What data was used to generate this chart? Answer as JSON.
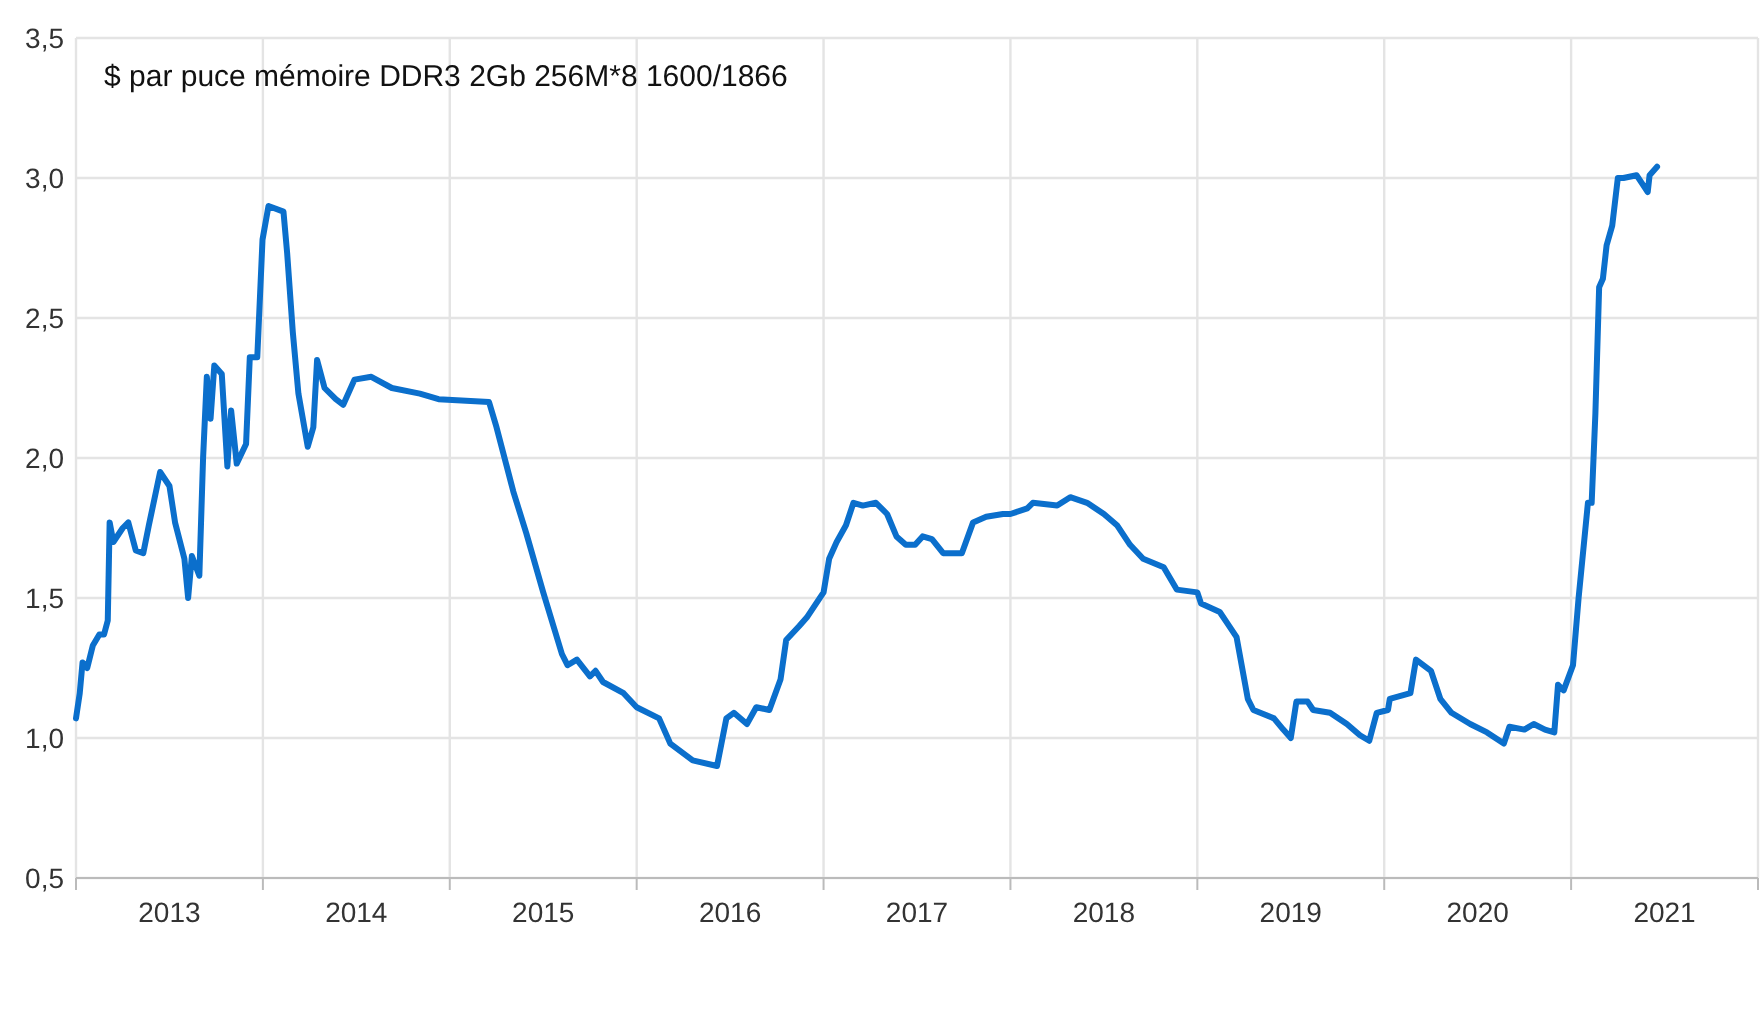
{
  "chart_data": {
    "type": "line",
    "title": "$ par puce mémoire DDR3 2Gb 256M*8 1600/1866",
    "xlim": [
      2013,
      2022
    ],
    "xticks": [
      {
        "value": 2013,
        "label": null
      },
      {
        "value": 2013.5,
        "label": "2013"
      },
      {
        "value": 2014,
        "label": null
      },
      {
        "value": 2014.5,
        "label": "2014"
      },
      {
        "value": 2015,
        "label": null
      },
      {
        "value": 2015.5,
        "label": "2015"
      },
      {
        "value": 2016,
        "label": null
      },
      {
        "value": 2016.5,
        "label": "2016"
      },
      {
        "value": 2017,
        "label": null
      },
      {
        "value": 2017.5,
        "label": "2017"
      },
      {
        "value": 2018,
        "label": null
      },
      {
        "value": 2018.5,
        "label": "2018"
      },
      {
        "value": 2019,
        "label": null
      },
      {
        "value": 2019.5,
        "label": "2019"
      },
      {
        "value": 2020,
        "label": null
      },
      {
        "value": 2020.5,
        "label": "2020"
      },
      {
        "value": 2021,
        "label": null
      },
      {
        "value": 2021.5,
        "label": "2021"
      },
      {
        "value": 2022,
        "label": null
      }
    ],
    "ylim": [
      0.5,
      3.5
    ],
    "yticks": [
      {
        "value": 0.5,
        "label": "0,5"
      },
      {
        "value": 1,
        "label": "1,0"
      },
      {
        "value": 1.5,
        "label": "1,5"
      },
      {
        "value": 2,
        "label": "2,0"
      },
      {
        "value": 2.5,
        "label": "2,5"
      },
      {
        "value": 3,
        "label": "3,0"
      },
      {
        "value": 3.5,
        "label": "3,5"
      }
    ],
    "grid": true,
    "line_style": "solid",
    "marker": "none",
    "series": [
      {
        "color": "#0b6fcc",
        "x": [
          2013.0,
          2013.02,
          2013.035,
          2013.06,
          2013.09,
          2013.125,
          2013.15,
          2013.17,
          2013.18,
          2013.2,
          2013.25,
          2013.28,
          2013.32,
          2013.36,
          2013.39,
          2013.45,
          2013.5,
          2013.53,
          2013.58,
          2013.6,
          2013.62,
          2013.66,
          2013.68,
          2013.7,
          2013.72,
          2013.74,
          2013.78,
          2013.81,
          2013.83,
          2013.86,
          2013.91,
          2013.93,
          2013.97,
          2013.998,
          2014.03,
          2014.11,
          2014.13,
          2014.16,
          2014.19,
          2014.24,
          2014.27,
          2014.29,
          2014.33,
          2014.39,
          2014.43,
          2014.49,
          2014.58,
          2014.69,
          2014.84,
          2014.94,
          2015.21,
          2015.25,
          2015.34,
          2015.41,
          2015.5,
          2015.6,
          2015.63,
          2015.68,
          2015.75,
          2015.78,
          2015.82,
          2015.93,
          2016.0,
          2016.12,
          2016.18,
          2016.3,
          2016.43,
          2016.48,
          2016.52,
          2016.59,
          2016.64,
          2016.71,
          2016.77,
          2016.8,
          2016.87,
          2016.91,
          2017.0,
          2017.03,
          2017.07,
          2017.12,
          2017.16,
          2017.21,
          2017.28,
          2017.34,
          2017.39,
          2017.44,
          2017.49,
          2017.53,
          2017.58,
          2017.64,
          2017.74,
          2017.8,
          2017.87,
          2017.96,
          2018.0,
          2018.09,
          2018.12,
          2018.25,
          2018.32,
          2018.41,
          2018.5,
          2018.57,
          2018.64,
          2018.71,
          2018.82,
          2018.89,
          2019.0,
          2019.02,
          2019.12,
          2019.16,
          2019.21,
          2019.27,
          2019.3,
          2019.41,
          2019.46,
          2019.5,
          2019.53,
          2019.59,
          2019.62,
          2019.71,
          2019.8,
          2019.87,
          2019.92,
          2019.96,
          2020.02,
          2020.03,
          2020.14,
          2020.17,
          2020.25,
          2020.3,
          2020.36,
          2020.46,
          2020.55,
          2020.64,
          2020.67,
          2020.75,
          2020.8,
          2020.86,
          2020.91,
          2020.93,
          2020.96,
          2021.01,
          2021.04,
          2021.09,
          2021.11,
          2021.13,
          2021.15,
          2021.17,
          2021.19,
          2021.22,
          2021.25,
          2021.28,
          2021.35,
          2021.39,
          2021.41,
          2021.42,
          2021.46
        ],
        "values": [
          1.07,
          1.16,
          1.27,
          1.25,
          1.33,
          1.37,
          1.37,
          1.42,
          1.77,
          1.7,
          1.75,
          1.77,
          1.67,
          1.66,
          1.76,
          1.95,
          1.9,
          1.77,
          1.64,
          1.5,
          1.65,
          1.58,
          2.0,
          2.29,
          2.14,
          2.33,
          2.3,
          1.97,
          2.17,
          1.98,
          2.05,
          2.36,
          2.36,
          2.78,
          2.9,
          2.88,
          2.73,
          2.45,
          2.23,
          2.04,
          2.11,
          2.35,
          2.25,
          2.21,
          2.19,
          2.28,
          2.29,
          2.25,
          2.23,
          2.21,
          2.2,
          2.11,
          1.88,
          1.73,
          1.52,
          1.3,
          1.26,
          1.28,
          1.22,
          1.24,
          1.2,
          1.16,
          1.11,
          1.07,
          0.98,
          0.92,
          0.9,
          1.07,
          1.09,
          1.05,
          1.11,
          1.1,
          1.21,
          1.35,
          1.4,
          1.43,
          1.52,
          1.64,
          1.7,
          1.76,
          1.84,
          1.83,
          1.84,
          1.8,
          1.72,
          1.69,
          1.69,
          1.72,
          1.71,
          1.66,
          1.66,
          1.77,
          1.79,
          1.8,
          1.8,
          1.82,
          1.84,
          1.83,
          1.86,
          1.84,
          1.8,
          1.76,
          1.69,
          1.64,
          1.61,
          1.53,
          1.52,
          1.48,
          1.45,
          1.41,
          1.36,
          1.14,
          1.1,
          1.07,
          1.03,
          1.0,
          1.13,
          1.13,
          1.1,
          1.09,
          1.05,
          1.01,
          0.99,
          1.09,
          1.1,
          1.14,
          1.16,
          1.28,
          1.24,
          1.14,
          1.09,
          1.05,
          1.02,
          0.98,
          1.04,
          1.03,
          1.05,
          1.03,
          1.02,
          1.19,
          1.17,
          1.26,
          1.5,
          1.84,
          1.84,
          2.16,
          2.61,
          2.64,
          2.76,
          2.83,
          3.0,
          3.0,
          3.01,
          2.97,
          2.95,
          3.01,
          3.04
        ]
      }
    ]
  }
}
